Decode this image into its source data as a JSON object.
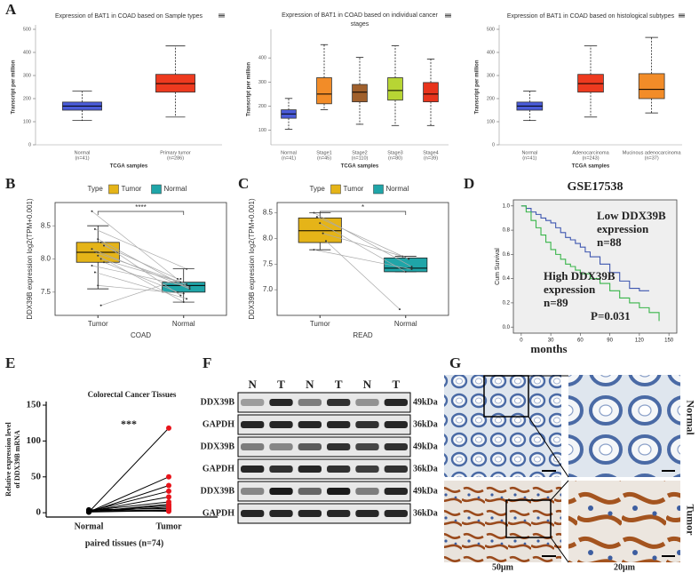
{
  "panel_labels": [
    "A",
    "B",
    "C",
    "D",
    "E",
    "F",
    "G"
  ],
  "chart_data": [
    {
      "type": "box",
      "title": [
        "Expression of BAT1 in COAD based on Sample types"
      ],
      "y_label": "Transcript per million",
      "x_label": "TCGA samples",
      "ylim": [
        0,
        500
      ],
      "yticks": [
        0,
        100,
        200,
        300,
        400,
        500
      ],
      "boxes": [
        {
          "name": "Normal",
          "n_label": "(n=41)",
          "color": "#4a5bd8",
          "whisker_low": 105,
          "q1": 150,
          "median": 168,
          "q3": 185,
          "whisker_high": 232
        },
        {
          "name": "Primary tumor",
          "n_label": "(n=286)",
          "color": "#ee3a1f",
          "whisker_low": 120,
          "q1": 228,
          "median": 265,
          "q3": 305,
          "whisker_high": 428
        }
      ]
    },
    {
      "type": "box",
      "title": [
        "Expression of BAT1 in COAD based on individual cancer",
        "stages"
      ],
      "y_label": "Transcript per million",
      "x_label": "TCGA samples",
      "ylim": [
        40,
        500
      ],
      "yticks": [
        100,
        200,
        300,
        400
      ],
      "boxes": [
        {
          "name": "Normal",
          "n_label": "(n=41)",
          "color": "#4a5bd8",
          "whisker_low": 105,
          "q1": 150,
          "median": 168,
          "q3": 185,
          "whisker_high": 232
        },
        {
          "name": "Stage1",
          "n_label": "(n=45)",
          "color": "#f28c28",
          "whisker_low": 185,
          "q1": 210,
          "median": 250,
          "q3": 318,
          "whisker_high": 455
        },
        {
          "name": "Stage2",
          "n_label": "(n=110)",
          "color": "#a0602c",
          "whisker_low": 125,
          "q1": 218,
          "median": 258,
          "q3": 290,
          "whisker_high": 402
        },
        {
          "name": "Stage3",
          "n_label": "(n=80)",
          "color": "#b7d534",
          "whisker_low": 120,
          "q1": 225,
          "median": 265,
          "q3": 318,
          "whisker_high": 450
        },
        {
          "name": "Stage4",
          "n_label": "(n=39)",
          "color": "#e8341c",
          "whisker_low": 120,
          "q1": 218,
          "median": 250,
          "q3": 298,
          "whisker_high": 395
        }
      ]
    },
    {
      "type": "box",
      "title": [
        "Expression of BAT1 in COAD based on histological subtypes"
      ],
      "y_label": "Transcript per million",
      "x_label": "TCGA samples",
      "ylim": [
        0,
        500
      ],
      "yticks": [
        0,
        100,
        200,
        300,
        400,
        500
      ],
      "boxes": [
        {
          "name": "Normal",
          "n_label": "(n=41)",
          "color": "#4a5bd8",
          "whisker_low": 105,
          "q1": 150,
          "median": 168,
          "q3": 185,
          "whisker_high": 232
        },
        {
          "name": "Adenocarcinoma",
          "n_label": "(n=243)",
          "color": "#ee3a1f",
          "whisker_low": 120,
          "q1": 228,
          "median": 265,
          "q3": 305,
          "whisker_high": 428
        },
        {
          "name": "Mucinous adenocarcinoma",
          "n_label": "(n=37)",
          "color": "#f28c28",
          "whisker_low": 138,
          "q1": 200,
          "median": 240,
          "q3": 308,
          "whisker_high": 465
        }
      ]
    },
    {
      "type": "paired_box",
      "legend_title": "Type",
      "y_label": "DDX39B expression log2(TPM+0.001)",
      "x_label": "COAD",
      "significance": "****",
      "ylim": [
        7.15,
        8.85
      ],
      "yticks": [
        7.5,
        {
          "value": 8,
          "label": "8.0"
        },
        8.5
      ],
      "boxes": [
        {
          "name": "Tumor",
          "color": "#e5b418",
          "whisker_low": 7.55,
          "q1": 7.95,
          "median": 8.1,
          "q3": 8.25,
          "whisker_high": 8.5
        },
        {
          "name": "Normal",
          "color": "#1fa5a8",
          "whisker_low": 7.35,
          "q1": 7.5,
          "median": 7.6,
          "q3": 7.65,
          "whisker_high": 7.85
        }
      ],
      "paired_values": [
        [
          8.72,
          8.45,
          8.3,
          8.25,
          8.2,
          8.15,
          8.1,
          8.05,
          8.0,
          7.95,
          7.9,
          7.8,
          7.6,
          7.3
        ],
        [
          7.55,
          7.85,
          7.6,
          7.45,
          7.7,
          7.55,
          7.62,
          7.35,
          7.65,
          7.5,
          7.58,
          7.4,
          7.48,
          7.7
        ]
      ]
    },
    {
      "type": "paired_box",
      "legend_title": "Type",
      "y_label": "DDX39B expression log2(TPM+0.001)",
      "x_label": "READ",
      "significance": "*",
      "ylim": [
        6.5,
        8.7
      ],
      "yticks": [
        {
          "value": 7,
          "label": "7.0"
        },
        7.5,
        {
          "value": 8,
          "label": "8.0"
        },
        8.5
      ],
      "boxes": [
        {
          "name": "Tumor",
          "color": "#e5b418",
          "whisker_low": 7.78,
          "q1": 7.92,
          "median": 8.15,
          "q3": 8.4,
          "whisker_high": 8.5
        },
        {
          "name": "Normal",
          "color": "#1fa5a8",
          "whisker_low": 7.35,
          "q1": 7.35,
          "median": 7.42,
          "q3": 7.62,
          "whisker_high": 7.65
        }
      ],
      "paired_values": [
        [
          8.5,
          8.42,
          8.3,
          8.1,
          7.95,
          7.78
        ],
        [
          7.45,
          7.6,
          7.35,
          7.65,
          6.62,
          7.4
        ]
      ]
    },
    {
      "type": "km",
      "title": "GSE17538",
      "y_label": "Cum Survival",
      "x_label": "months",
      "xlim": [
        -8,
        158
      ],
      "xticks": [
        0,
        30,
        60,
        90,
        120,
        150
      ],
      "ylim": [
        -0.05,
        1.05
      ],
      "yticks": [
        {
          "value": 0,
          "label": "0.0"
        },
        0.2,
        0.4,
        0.6,
        0.8,
        {
          "value": 1,
          "label": "1.0"
        }
      ],
      "series": [
        {
          "color": "#3f57b0",
          "x": [
            0,
            5,
            10,
            15,
            20,
            25,
            30,
            35,
            40,
            45,
            50,
            55,
            60,
            65,
            70,
            80,
            90,
            100,
            110,
            120,
            130
          ],
          "values": [
            1,
            0.98,
            0.95,
            0.93,
            0.9,
            0.88,
            0.86,
            0.82,
            0.78,
            0.74,
            0.72,
            0.69,
            0.66,
            0.62,
            0.58,
            0.52,
            0.45,
            0.38,
            0.32,
            0.3,
            0.3
          ]
        },
        {
          "color": "#39b54a",
          "x": [
            0,
            5,
            10,
            15,
            20,
            25,
            30,
            35,
            40,
            45,
            50,
            55,
            60,
            70,
            80,
            90,
            100,
            110,
            120,
            130,
            140
          ],
          "values": [
            1,
            0.95,
            0.88,
            0.82,
            0.76,
            0.7,
            0.64,
            0.6,
            0.56,
            0.52,
            0.5,
            0.47,
            0.44,
            0.4,
            0.36,
            0.3,
            0.24,
            0.2,
            0.16,
            0.12,
            0.05
          ]
        }
      ],
      "annotations": [
        [
          "Low DDX39B",
          "expression",
          "n=88"
        ],
        [
          "High DDX39B",
          "expression",
          "n=89"
        ],
        [
          "P=0.031"
        ]
      ]
    },
    {
      "type": "paired_dot",
      "title": "Colorectal Cancer Tissues",
      "y_label": [
        "Relative expression level",
        "of DDX39B mRNA"
      ],
      "x_label": "paired tissues (n=74)",
      "significance": "***",
      "categories": [
        "Normal",
        "Tumor"
      ],
      "ylim": [
        -6,
        155
      ],
      "yticks": [
        0,
        50,
        100,
        150
      ],
      "paired_values": [
        [
          1,
          1,
          1,
          2,
          2,
          3,
          1,
          2,
          1,
          4,
          2,
          1,
          3
        ],
        [
          118,
          50,
          38,
          30,
          22,
          15,
          12,
          10,
          8,
          6,
          4,
          3,
          2
        ]
      ]
    }
  ],
  "blot": {
    "lanes": [
      "N",
      "T",
      "N",
      "T",
      "N",
      "T"
    ],
    "rows": [
      {
        "name": "DDX39B",
        "size": "49kDa"
      },
      {
        "name": "GAPDH",
        "size": "36kDa"
      },
      {
        "name": "DDX39B",
        "size": "49kDa"
      },
      {
        "name": "GAPDH",
        "size": "36kDa"
      },
      {
        "name": "DDX39B",
        "size": "49kDa"
      },
      {
        "name": "GAPDH",
        "size": "36kDa"
      }
    ]
  },
  "ihc": {
    "rows": [
      "Normal",
      "Tumor"
    ],
    "scales": [
      "50μm",
      "20μm"
    ]
  }
}
